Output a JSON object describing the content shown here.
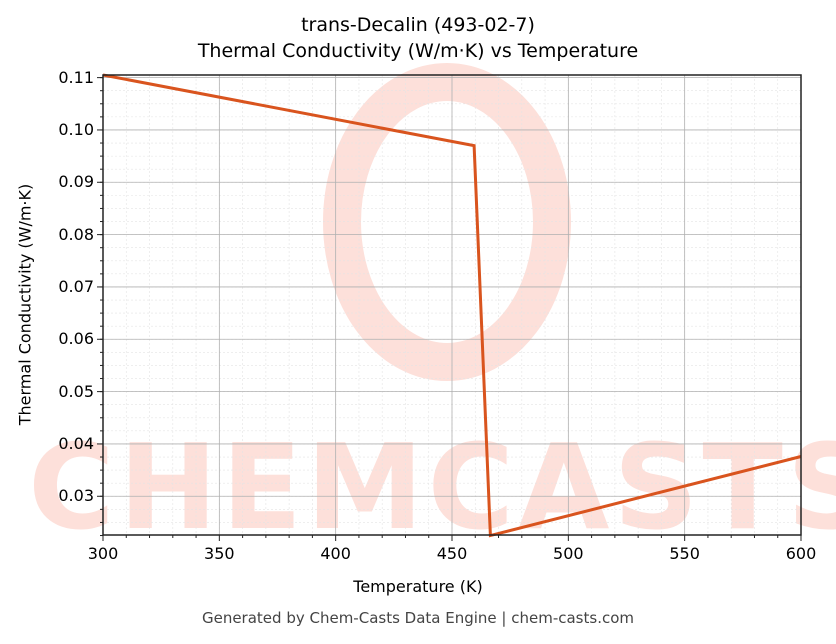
{
  "chart": {
    "title_line1": "trans-Decalin (493-02-7)",
    "title_line2": "Thermal Conductivity (W/m·K) vs Temperature",
    "xlabel": "Temperature (K)",
    "ylabel": "Thermal Conductivity (W/m·K)",
    "footer": "Generated by Chem-Casts Data Engine | chem-casts.com",
    "watermark": "CHEMCASTS",
    "line_color": "#d9541e",
    "x_ticks": [
      "300",
      "350",
      "400",
      "450",
      "500",
      "550",
      "600"
    ],
    "y_ticks": [
      "0.03",
      "0.04",
      "0.05",
      "0.06",
      "0.07",
      "0.08",
      "0.09",
      "0.10",
      "0.11"
    ]
  },
  "chart_data": {
    "type": "line",
    "title": "trans-Decalin (493-02-7) Thermal Conductivity (W/m·K) vs Temperature",
    "xlabel": "Temperature (K)",
    "ylabel": "Thermal Conductivity (W/m·K)",
    "xlim": [
      300,
      600
    ],
    "ylim": [
      0.0226,
      0.1105
    ],
    "grid": true,
    "series": [
      {
        "name": "Thermal Conductivity",
        "x": [
          300,
          459.5,
          466.5,
          600
        ],
        "y": [
          0.1105,
          0.097,
          0.0225,
          0.0376
        ]
      }
    ]
  }
}
